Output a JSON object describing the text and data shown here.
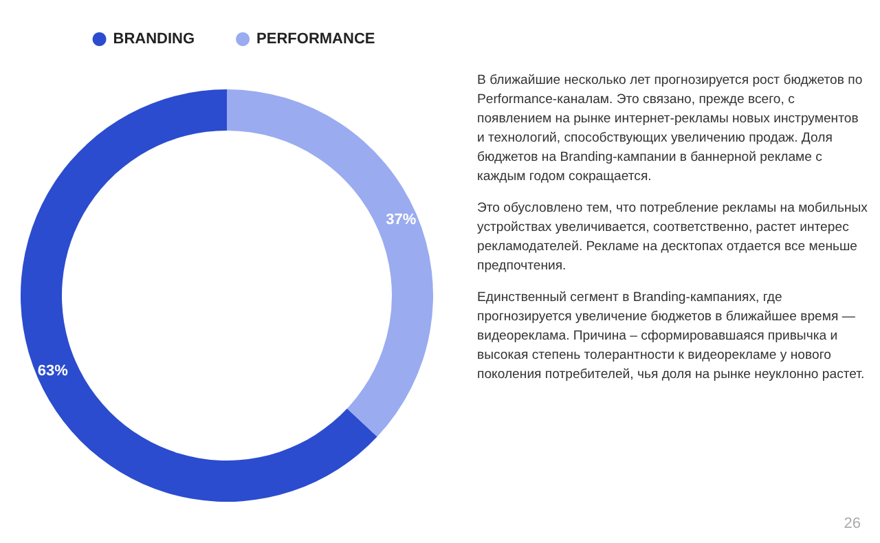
{
  "chart_data": {
    "type": "donut",
    "categories": [
      "BRANDING",
      "PERFORMANCE"
    ],
    "values": [
      63,
      37
    ],
    "colors": [
      "#2b4cce",
      "#9aabf0"
    ],
    "value_labels": [
      "63%",
      "37%"
    ],
    "legend": "top",
    "annotations": [
      "В ближайшие несколько лет прогнозируется рост бюджетов по Performance-каналам. Это связано, прежде всего, с появлением на рынке интернет-рекламы новых инструментов и технологий, способствующих увеличению продаж. Доля бюджетов на Branding-кампании в баннерной рекламе с каждым годом сокращается.",
      "Это обусловлено тем, что потребление рекламы на мобильных устройствах увеличивается, соответственно, растет интерес рекламодателей. Рекламе на десктопах отдается все меньше предпочтения.",
      "Единственный сегмент в Branding-кампаниях, где прогнозируется увеличение бюджетов в ближайшее время — видеореклама. Причина – сформировавшаяся привычка и высокая степень толерантности к видеорекламе у нового поколения потребителей, чья доля на рынке неуклонно растет.",
      "26"
    ]
  }
}
